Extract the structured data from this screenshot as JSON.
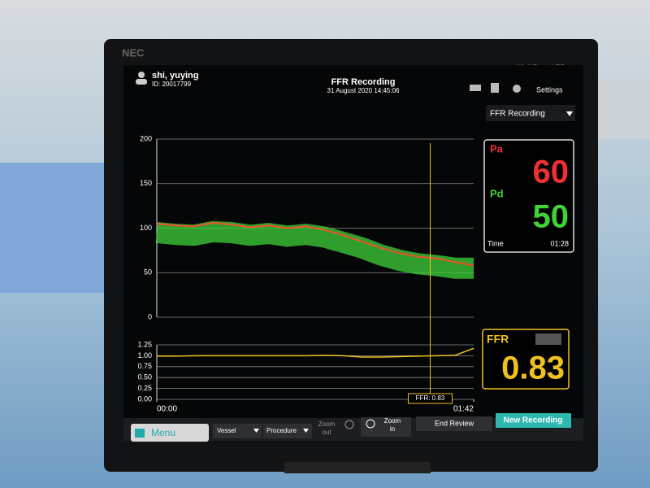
{
  "bezel": {
    "brand": "NEC",
    "model": "MultiSync LCD"
  },
  "header": {
    "patient": "shi, yuying",
    "patient_id": "ID: 20017799",
    "title": "FFR Recording",
    "datetime": "31 August 2020 14:45:06",
    "settings": "Settings",
    "mode_dropdown": "FFR Recording"
  },
  "readouts": {
    "pa_label": "Pa",
    "pa_value": "60",
    "pd_label": "Pd",
    "pd_value": "50",
    "time_label": "Time",
    "time_value": "01:28",
    "ffr_label": "FFR",
    "ffr_value": "0.83"
  },
  "pressure_chart": {
    "type": "line",
    "x": [
      0,
      6,
      12,
      18,
      24,
      30,
      36,
      42,
      48,
      54,
      60,
      66,
      72,
      78,
      84,
      90,
      96,
      102
    ],
    "xlim": [
      0,
      102
    ],
    "ylim": [
      0,
      200
    ],
    "yticks": [
      0,
      50,
      100,
      150,
      200
    ],
    "series": [
      {
        "name": "Pd",
        "color": "#3fd23a",
        "values": [
          95,
          93,
          92,
          96,
          95,
          92,
          94,
          91,
          93,
          90,
          84,
          78,
          70,
          64,
          60,
          58,
          55,
          55
        ]
      },
      {
        "name": "Pa",
        "color": "#f0502a",
        "values": [
          105,
          103,
          102,
          106,
          104,
          101,
          103,
          100,
          102,
          98,
          92,
          85,
          78,
          72,
          68,
          66,
          62,
          58
        ]
      }
    ]
  },
  "ffr_chart": {
    "type": "line",
    "x": [
      0,
      6,
      12,
      18,
      24,
      30,
      36,
      42,
      48,
      54,
      60,
      66,
      72,
      78,
      84,
      90,
      96,
      102
    ],
    "xlim": [
      0,
      102
    ],
    "xticks": [
      {
        "value": 0,
        "label": "00:00"
      },
      {
        "value": 102,
        "label": "01:42"
      }
    ],
    "ylim": [
      0,
      1.25
    ],
    "yticks": [
      {
        "value": 0,
        "label": "0.00"
      },
      {
        "value": 0.25,
        "label": "0.25"
      },
      {
        "value": 0.5,
        "label": "0.50"
      },
      {
        "value": 0.75,
        "label": "0.75"
      },
      {
        "value": 1,
        "label": "1.00"
      },
      {
        "value": 1.25,
        "label": "1.25"
      }
    ],
    "series": [
      {
        "name": "FFR",
        "color": "#f0c020",
        "values": [
          0.99,
          0.99,
          1.0,
          1.0,
          1.0,
          1.0,
          1.0,
          1.0,
          1.0,
          1.01,
          1.0,
          0.97,
          0.97,
          0.98,
          0.99,
          1.0,
          1.01,
          1.17
        ]
      }
    ],
    "cursor": {
      "x": 88,
      "label": "FFR: 0.83"
    }
  },
  "toolbar": {
    "menu": "Menu",
    "vessel": "Vessel",
    "procedure": "Procedure",
    "zoom_out_1": "Zoom",
    "zoom_out_2": "out",
    "zoom_in_1": "Zoom",
    "zoom_in_2": "in",
    "end_review": "End Review",
    "new_recording": "New Recording"
  }
}
